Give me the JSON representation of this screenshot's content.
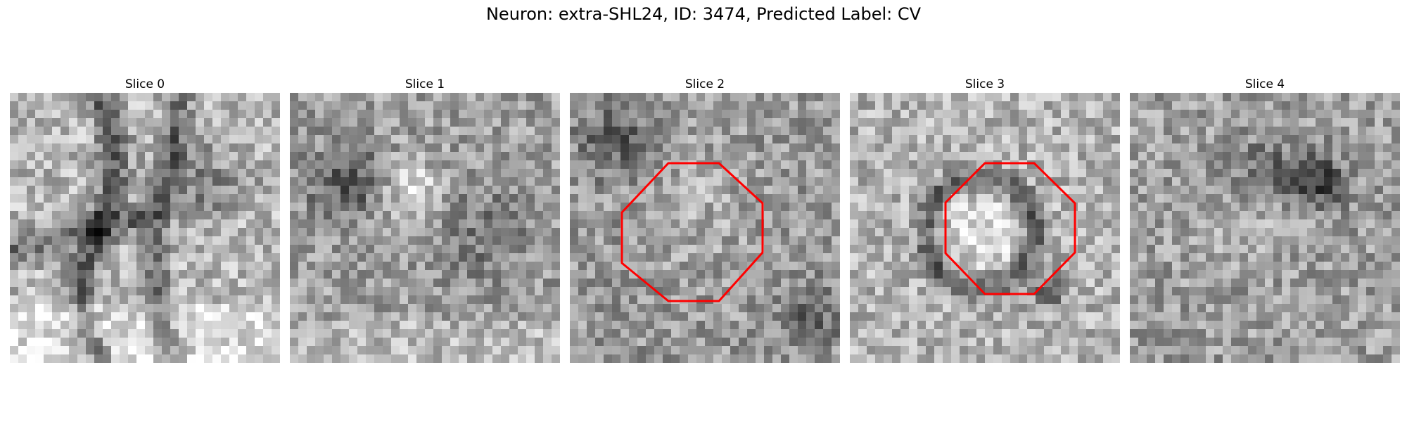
{
  "figure": {
    "title": "Neuron: extra-SHL24, ID: 3474, Predicted Label: CV"
  },
  "panels": [
    {
      "title": "Slice 0",
      "marker": false,
      "pattern": "membranes"
    },
    {
      "title": "Slice 1",
      "marker": false,
      "pattern": "faint-blob"
    },
    {
      "title": "Slice 2",
      "marker": true,
      "pattern": "noise"
    },
    {
      "title": "Slice 3",
      "marker": true,
      "pattern": "ring"
    },
    {
      "title": "Slice 4",
      "marker": false,
      "pattern": "dark-spot"
    }
  ],
  "colors": {
    "marker": "#ff0000",
    "background": "#ffffff"
  }
}
